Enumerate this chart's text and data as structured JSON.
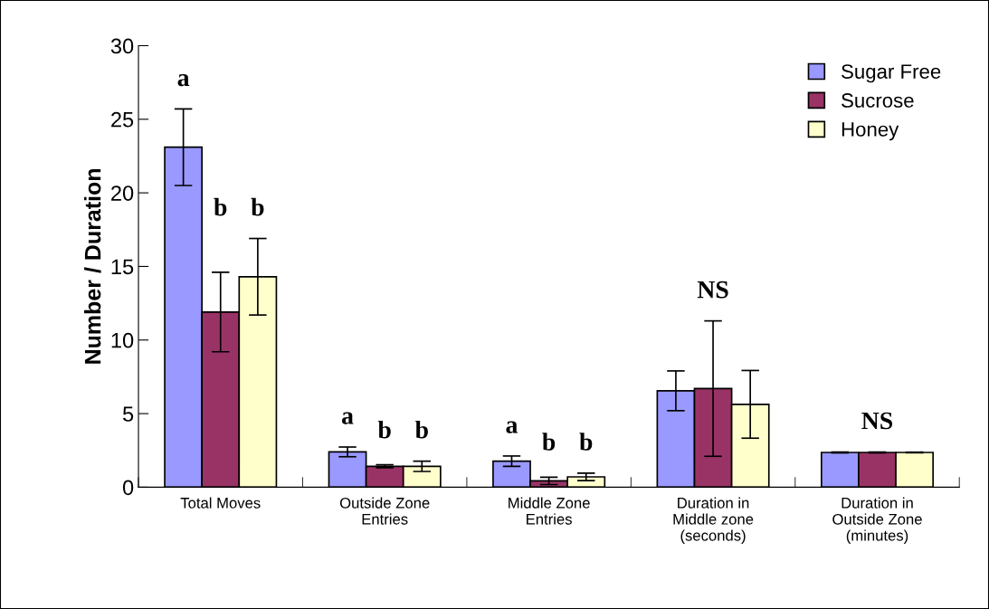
{
  "chart_data": {
    "type": "bar",
    "ylabel": "Number / Duration",
    "categories": [
      "Total Moves",
      "Outside Zone\nEntries",
      "Middle Zone\nEntries",
      "Duration in\nMiddle zone\n(seconds)",
      "Duration in\nOutside Zone\n(minutes)"
    ],
    "series": [
      {
        "name": "Sugar Free",
        "color": "#9999ff",
        "values": [
          23.1,
          2.4,
          1.77,
          6.55,
          2.36
        ],
        "errors": [
          2.6,
          0.33,
          0.35,
          1.35,
          0.03
        ]
      },
      {
        "name": "Sucrose",
        "color": "#993366",
        "values": [
          11.9,
          1.42,
          0.43,
          6.7,
          2.36
        ],
        "errors": [
          2.7,
          0.1,
          0.25,
          4.6,
          0.03
        ]
      },
      {
        "name": "Honey",
        "color": "#ffffcc",
        "values": [
          14.3,
          1.42,
          0.7,
          5.63,
          2.36
        ],
        "errors": [
          2.6,
          0.35,
          0.25,
          2.3,
          0.02
        ]
      }
    ],
    "annotations": [
      "a b b",
      "a b b",
      "a b b",
      "NS",
      "NS"
    ],
    "ylim": [
      0,
      30
    ],
    "yticks": [
      0,
      5,
      10,
      15,
      20,
      25,
      30
    ],
    "grid": false,
    "legend": "top right"
  }
}
